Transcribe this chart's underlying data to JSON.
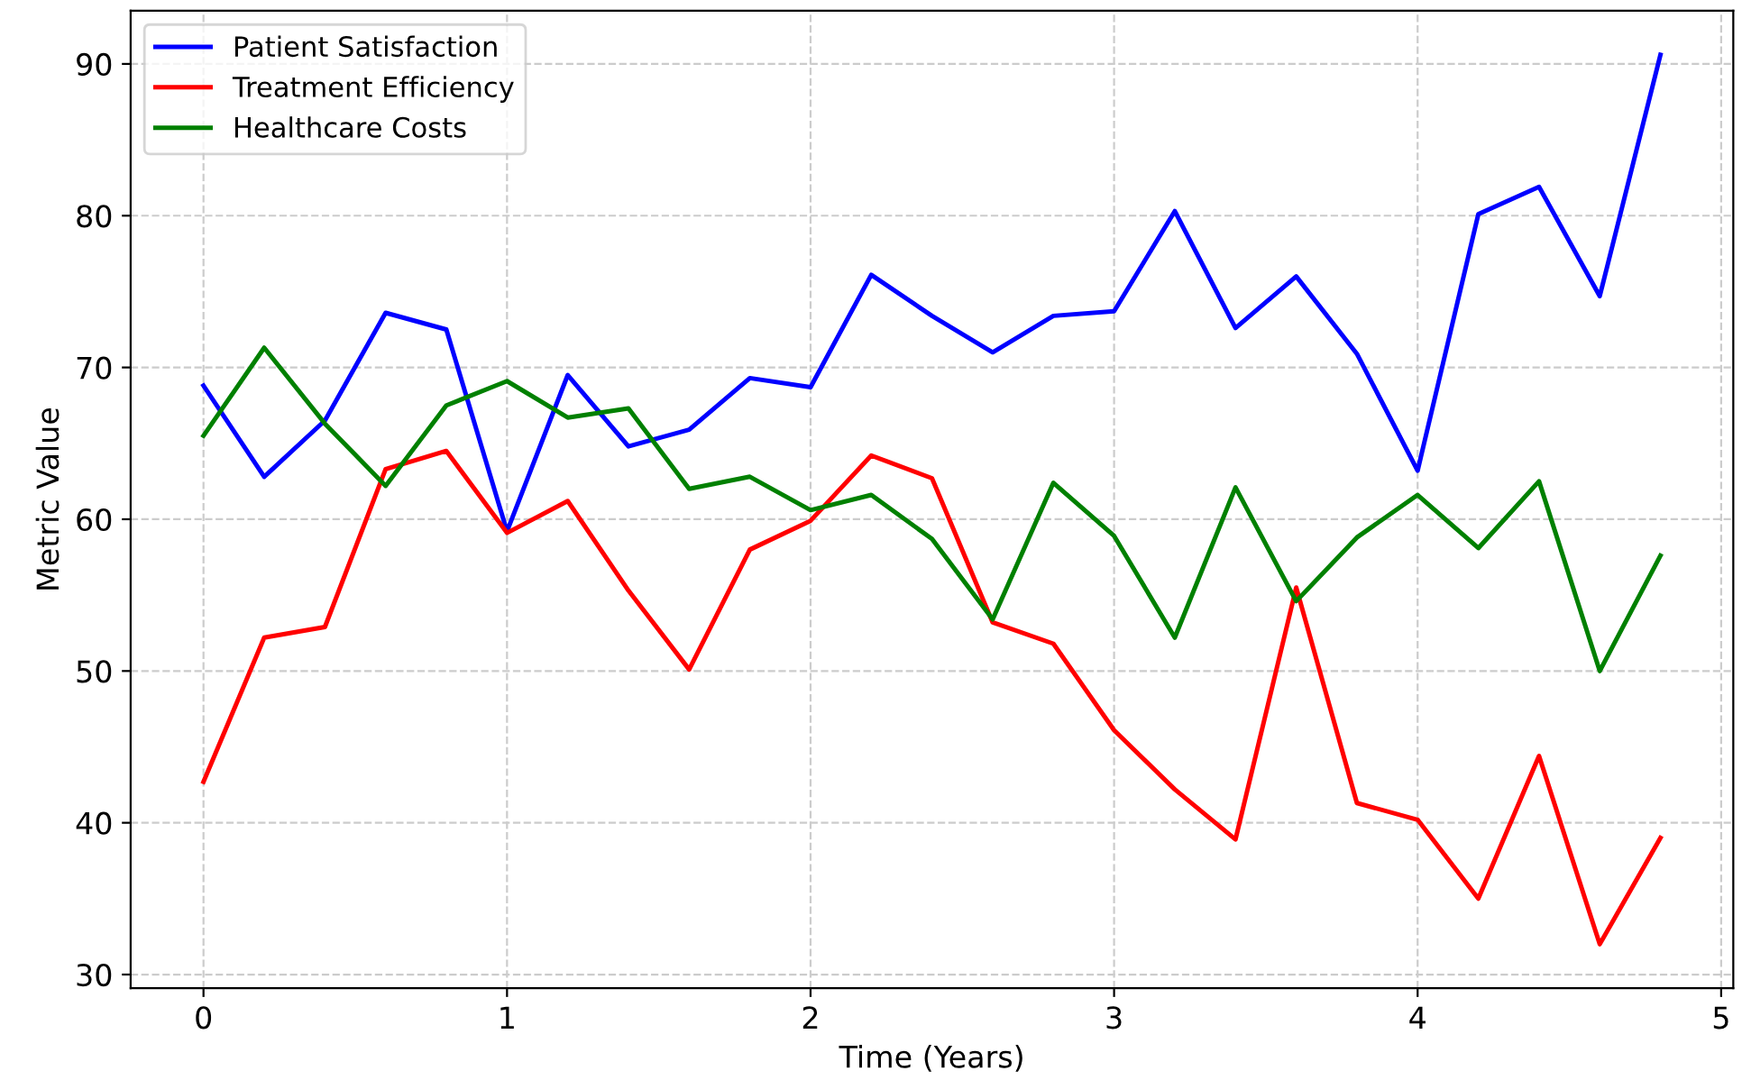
{
  "chart_data": {
    "type": "line",
    "xlabel": "Time (Years)",
    "ylabel": "Metric Value",
    "x": [
      0,
      0.2,
      0.4,
      0.6,
      0.8,
      1.0,
      1.2,
      1.4,
      1.6,
      1.8,
      2.0,
      2.2,
      2.4,
      2.6,
      2.8,
      3.0,
      3.2,
      3.4,
      3.6,
      3.8,
      4.0,
      4.2,
      4.4,
      4.6,
      4.8
    ],
    "series": [
      {
        "name": "Patient Satisfaction",
        "color": "#0000ff",
        "values": [
          68.8,
          62.8,
          66.5,
          73.6,
          72.5,
          59.2,
          69.5,
          64.8,
          65.9,
          69.3,
          68.7,
          76.1,
          73.4,
          71.0,
          73.4,
          73.7,
          80.3,
          72.6,
          76.0,
          70.9,
          63.2,
          80.1,
          81.9,
          74.7,
          90.6
        ]
      },
      {
        "name": "Treatment Efficiency",
        "color": "#ff0000",
        "values": [
          42.7,
          52.2,
          52.9,
          63.3,
          64.5,
          59.1,
          61.2,
          55.3,
          50.1,
          58.0,
          59.9,
          64.2,
          62.7,
          53.2,
          51.8,
          46.1,
          42.2,
          38.9,
          55.5,
          41.3,
          40.2,
          35.0,
          44.4,
          32.0,
          39.0
        ]
      },
      {
        "name": "Healthcare Costs",
        "color": "#008000",
        "values": [
          65.5,
          71.3,
          66.3,
          62.2,
          67.5,
          69.1,
          66.7,
          67.3,
          62.0,
          62.8,
          60.6,
          61.6,
          58.7,
          53.4,
          62.4,
          58.9,
          52.2,
          62.1,
          54.6,
          58.8,
          61.6,
          58.1,
          62.5,
          50.0,
          57.6
        ]
      }
    ],
    "xlim": [
      -0.24,
      5.04
    ],
    "ylim": [
      29.1,
      93.5
    ],
    "xticks": [
      0,
      1,
      2,
      3,
      4,
      5
    ],
    "yticks": [
      30,
      40,
      50,
      60,
      70,
      80,
      90
    ],
    "grid": true,
    "legend": "top left",
    "line_style": "solid",
    "marker": "none"
  }
}
